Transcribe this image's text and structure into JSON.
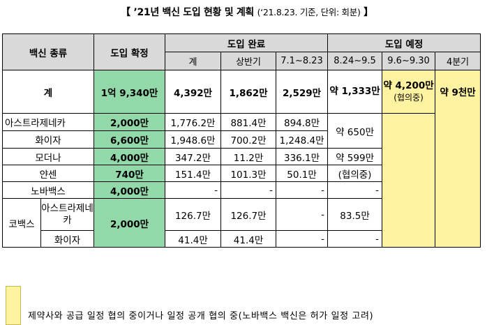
{
  "title": {
    "main": "【 ’21년 백신 도입 현황 및 계획",
    "sub": "(‘21.8.23. 기준, 단위: 회분)",
    "close": "】"
  },
  "header": {
    "vaccine_type": "백신 종류",
    "confirmed": "도입 확정",
    "completed": "도입 완료",
    "planned": "도입 예정",
    "total_col": "계",
    "first_half": "상반기",
    "jul_aug": "7.1~8.23",
    "aug_sep": "8.24~9.5",
    "sep": "9.6~9.30",
    "q4": "4분기"
  },
  "total_row": {
    "label": "계",
    "confirmed": "1억 9,340만",
    "completed_total": "4,392만",
    "first_half": "1,862만",
    "jul_aug": "2,529만",
    "aug_sep": "약 1,333만",
    "sep": "약 4,200만",
    "sep_note": "(협의중)",
    "q4": "약 9천만"
  },
  "rows": [
    {
      "name": "아스트라제네카",
      "confirmed": "2,000만",
      "total": "1,776.2만",
      "h1": "881.4만",
      "jul": "894.8만"
    },
    {
      "name": "화이자",
      "confirmed": "6,600만",
      "total": "1,948.6만",
      "h1": "700.2만",
      "jul": "1,248.4만"
    },
    {
      "name": "모더나",
      "confirmed": "4,000만",
      "total": "347.2만",
      "h1": "11.2만",
      "jul": "336.1만",
      "aug": "약 599만"
    },
    {
      "name": "얀센",
      "confirmed": "740만",
      "total": "151.4만",
      "h1": "101.3만",
      "jul": "50.1만",
      "aug": "(협의중)"
    },
    {
      "name": "노바백스",
      "confirmed": "4,000만",
      "total": "-",
      "h1": "-",
      "jul": "-",
      "aug": "-"
    }
  ],
  "az_pfizer_aug": "약 650만",
  "covax": {
    "label": "코백스",
    "confirmed": "2,000만",
    "az": {
      "name": "아스트라제네카",
      "total": "126.7만",
      "h1": "126.7만",
      "jul": "-",
      "aug": "83.5만"
    },
    "pfizer": {
      "name": "화이자",
      "total": "41.4만",
      "h1": "41.4만",
      "jul": "-",
      "aug": "-"
    }
  },
  "legend": {
    "text": "제약사와 공급 일정 협의 중이거나 일정 공개 협의 중(노바백스 백신은 허가 일정 고려)",
    "color": "#fff2a0"
  },
  "colors": {
    "header_gray": "#d9d9d9",
    "confirmed_green": "#92d8a8",
    "planned_yellow": "#fff2a0"
  }
}
